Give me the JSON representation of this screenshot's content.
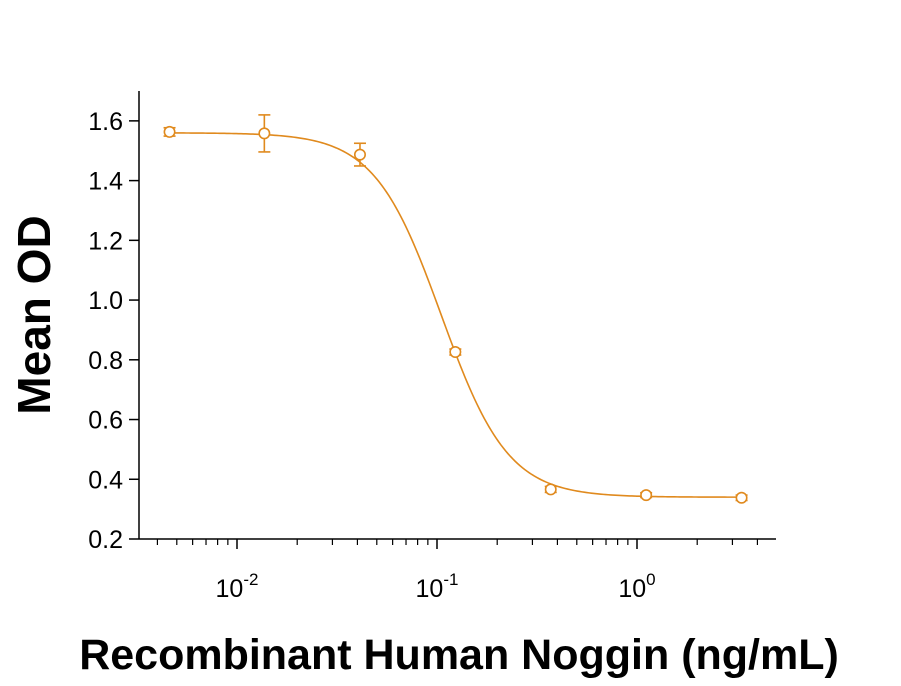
{
  "chart_data": {
    "type": "scatter",
    "xlabel": "Recombinant Human Noggin (ng/mL)",
    "ylabel": "Mean OD",
    "x_scale": "log",
    "xlim": [
      0.0035,
      4.5
    ],
    "ylim": [
      0.2,
      1.7
    ],
    "x_ticks": [
      {
        "value": 0.01,
        "base": "10",
        "exp": "-2"
      },
      {
        "value": 0.1,
        "base": "10",
        "exp": "-1"
      },
      {
        "value": 1,
        "base": "10",
        "exp": "0"
      }
    ],
    "y_ticks": [
      {
        "value": 0.2,
        "label": "0.2"
      },
      {
        "value": 0.4,
        "label": "0.4"
      },
      {
        "value": 0.6,
        "label": "0.6"
      },
      {
        "value": 0.8,
        "label": "0.8"
      },
      {
        "value": 1.0,
        "label": "1.0"
      },
      {
        "value": 1.2,
        "label": "1.2"
      },
      {
        "value": 1.4,
        "label": "1.4"
      },
      {
        "value": 1.6,
        "label": "1.6"
      }
    ],
    "grid": false,
    "legend": "none",
    "color": "#e08a1e",
    "series": [
      {
        "points": [
          {
            "x": 0.0046,
            "y": 1.563,
            "err": 0.014
          },
          {
            "x": 0.0137,
            "y": 1.558,
            "err": 0.062
          },
          {
            "x": 0.0412,
            "y": 1.487,
            "err": 0.038
          },
          {
            "x": 0.1235,
            "y": 0.826,
            "err": 0.01
          },
          {
            "x": 0.3704,
            "y": 0.366,
            "err": 0.01
          },
          {
            "x": 1.111,
            "y": 0.347,
            "err": 0.008
          },
          {
            "x": 3.333,
            "y": 0.338,
            "err": 0.009
          }
        ],
        "fit": {
          "model": "4PL",
          "top": 1.56,
          "bottom": 0.34,
          "ec50": 0.105,
          "hill": 2.6
        }
      }
    ]
  }
}
